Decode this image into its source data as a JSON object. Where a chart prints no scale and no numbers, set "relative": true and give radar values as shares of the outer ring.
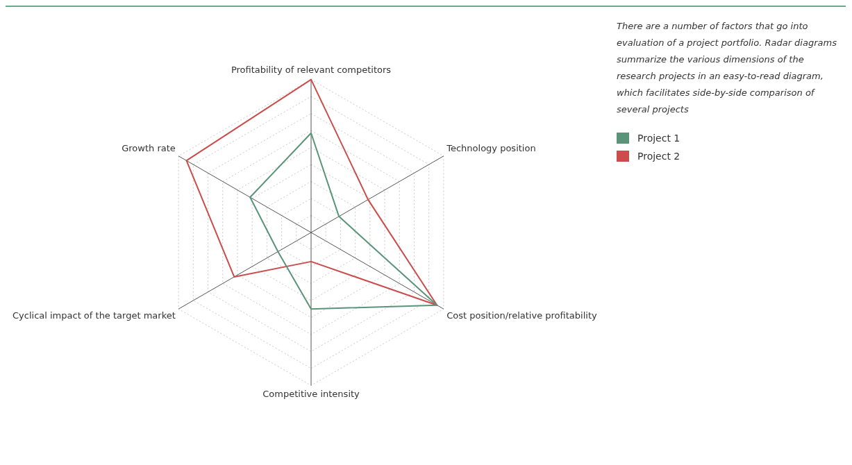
{
  "chart_data": {
    "type": "radar",
    "relative": true,
    "categories": [
      "Profitability of relevant competitors",
      "Technology position",
      "Cost position/relative profitability",
      "Competitive intensity",
      "Cyclical impact of the target market",
      "Growth rate"
    ],
    "series": [
      {
        "name": "Project 1",
        "color": "#5a9478",
        "values": [
          0.65,
          0.21,
          0.95,
          0.5,
          0.25,
          0.46
        ]
      },
      {
        "name": "Project 2",
        "color": "#cc4b4b",
        "values": [
          1,
          0.43,
          0.95,
          0.19,
          0.58,
          0.94
        ]
      }
    ],
    "legend": "right",
    "marker": "none",
    "annotations": [
      "There are a number of factors that go into evaluation of a project portfolio. Radar diagrams summarize the various dimensions of the research projects in an easy-to-read diagram, which facilitates side-by-side comparison of several projects"
    ]
  }
}
